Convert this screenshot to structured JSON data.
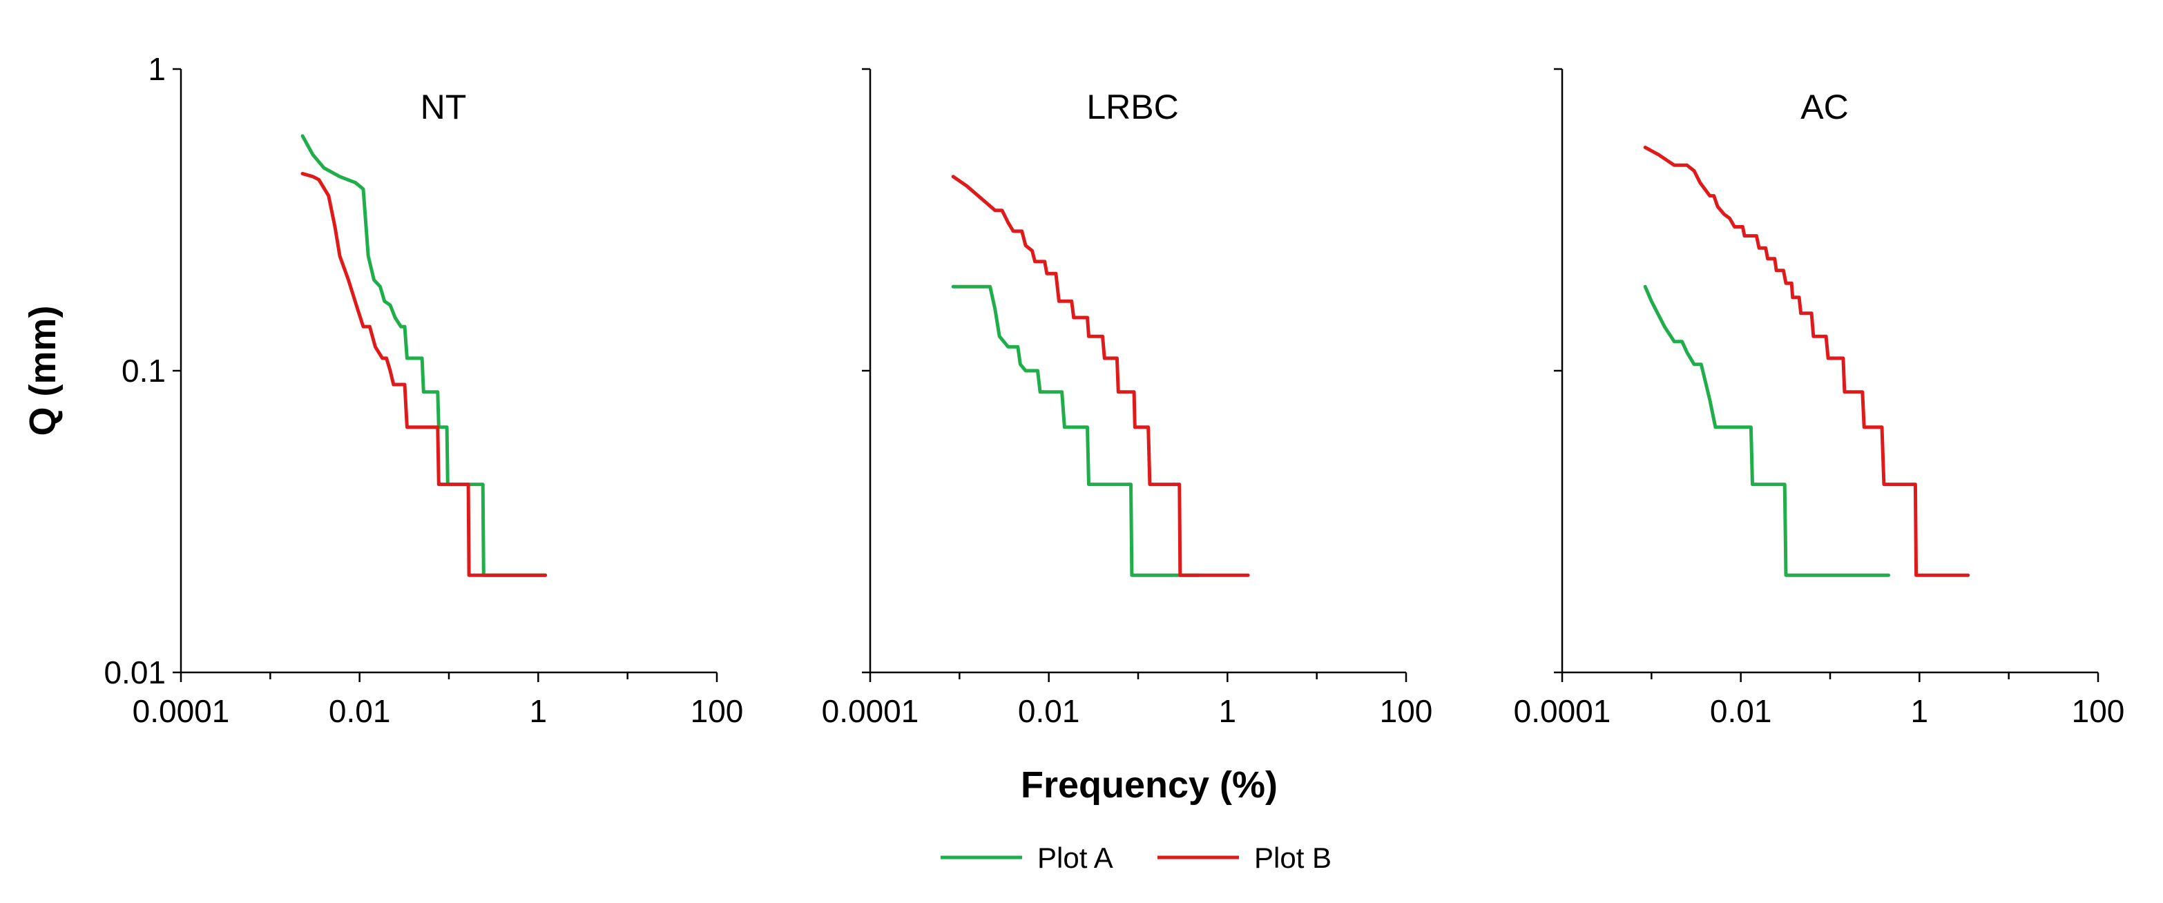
{
  "chart_data": {
    "type": "line",
    "xlabel": "Frequency (%)",
    "ylabel": "Q (mm)",
    "xscale": "log",
    "yscale": "log",
    "xlim": [
      0.0001,
      100
    ],
    "ylim": [
      0.01,
      1
    ],
    "x_ticks": [
      "0.0001",
      "0.01",
      "1",
      "100"
    ],
    "x_tick_values": [
      0.0001,
      0.01,
      1,
      100
    ],
    "x_minor_tick_values": [
      0.001,
      0.1,
      10
    ],
    "y_ticks": [
      "0.01",
      "0.1",
      "1"
    ],
    "y_tick_values": [
      0.01,
      0.1,
      1
    ],
    "legend": {
      "position": "bottom-center",
      "entries": [
        {
          "label": "Plot A",
          "color": "#1fae4a"
        },
        {
          "label": "Plot B",
          "color": "#e01a1a"
        }
      ]
    },
    "panels": [
      {
        "title": "NT",
        "show_ylabels": true,
        "series": [
          {
            "name": "Plot A",
            "color": "#1fae4a",
            "points": [
              [
                0.0023,
                0.6
              ],
              [
                0.003,
                0.52
              ],
              [
                0.004,
                0.47
              ],
              [
                0.006,
                0.44
              ],
              [
                0.009,
                0.42
              ],
              [
                0.011,
                0.4
              ],
              [
                0.0125,
                0.24
              ],
              [
                0.0145,
                0.2
              ],
              [
                0.017,
                0.19
              ],
              [
                0.019,
                0.17
              ],
              [
                0.022,
                0.165
              ],
              [
                0.025,
                0.15
              ],
              [
                0.029,
                0.14
              ],
              [
                0.032,
                0.14
              ],
              [
                0.034,
                0.11
              ],
              [
                0.05,
                0.11
              ],
              [
                0.052,
                0.085
              ],
              [
                0.075,
                0.085
              ],
              [
                0.077,
                0.065
              ],
              [
                0.095,
                0.065
              ],
              [
                0.097,
                0.042
              ],
              [
                0.24,
                0.042
              ],
              [
                0.245,
                0.021
              ],
              [
                1.2,
                0.021
              ]
            ]
          },
          {
            "name": "Plot B",
            "color": "#e01a1a",
            "points": [
              [
                0.0023,
                0.45
              ],
              [
                0.003,
                0.44
              ],
              [
                0.0035,
                0.43
              ],
              [
                0.0045,
                0.38
              ],
              [
                0.0053,
                0.3
              ],
              [
                0.006,
                0.24
              ],
              [
                0.0075,
                0.2
              ],
              [
                0.0095,
                0.16
              ],
              [
                0.011,
                0.14
              ],
              [
                0.013,
                0.14
              ],
              [
                0.015,
                0.12
              ],
              [
                0.018,
                0.11
              ],
              [
                0.02,
                0.11
              ],
              [
                0.022,
                0.1
              ],
              [
                0.024,
                0.09
              ],
              [
                0.032,
                0.09
              ],
              [
                0.034,
                0.065
              ],
              [
                0.075,
                0.065
              ],
              [
                0.077,
                0.042
              ],
              [
                0.165,
                0.042
              ],
              [
                0.168,
                0.021
              ],
              [
                1.2,
                0.021
              ]
            ]
          }
        ]
      },
      {
        "title": "LRBC",
        "show_ylabels": false,
        "series": [
          {
            "name": "Plot A",
            "color": "#1fae4a",
            "points": [
              [
                0.00085,
                0.19
              ],
              [
                0.0017,
                0.19
              ],
              [
                0.0022,
                0.19
              ],
              [
                0.0025,
                0.16
              ],
              [
                0.0028,
                0.13
              ],
              [
                0.0035,
                0.12
              ],
              [
                0.0045,
                0.12
              ],
              [
                0.0048,
                0.105
              ],
              [
                0.0055,
                0.1
              ],
              [
                0.0075,
                0.1
              ],
              [
                0.008,
                0.085
              ],
              [
                0.014,
                0.085
              ],
              [
                0.015,
                0.065
              ],
              [
                0.027,
                0.065
              ],
              [
                0.028,
                0.042
              ],
              [
                0.083,
                0.042
              ],
              [
                0.085,
                0.021
              ],
              [
                0.48,
                0.021
              ]
            ]
          },
          {
            "name": "Plot B",
            "color": "#e01a1a",
            "points": [
              [
                0.00085,
                0.44
              ],
              [
                0.0012,
                0.41
              ],
              [
                0.0018,
                0.37
              ],
              [
                0.0025,
                0.34
              ],
              [
                0.003,
                0.34
              ],
              [
                0.0035,
                0.31
              ],
              [
                0.004,
                0.29
              ],
              [
                0.005,
                0.29
              ],
              [
                0.0055,
                0.26
              ],
              [
                0.0065,
                0.25
              ],
              [
                0.007,
                0.23
              ],
              [
                0.009,
                0.23
              ],
              [
                0.0095,
                0.21
              ],
              [
                0.012,
                0.21
              ],
              [
                0.013,
                0.17
              ],
              [
                0.018,
                0.17
              ],
              [
                0.019,
                0.15
              ],
              [
                0.027,
                0.15
              ],
              [
                0.028,
                0.13
              ],
              [
                0.04,
                0.13
              ],
              [
                0.042,
                0.11
              ],
              [
                0.058,
                0.11
              ],
              [
                0.06,
                0.085
              ],
              [
                0.09,
                0.085
              ],
              [
                0.092,
                0.065
              ],
              [
                0.13,
                0.065
              ],
              [
                0.135,
                0.042
              ],
              [
                0.29,
                0.042
              ],
              [
                0.295,
                0.021
              ],
              [
                1.7,
                0.021
              ]
            ]
          }
        ]
      },
      {
        "title": "AC",
        "show_ylabels": false,
        "series": [
          {
            "name": "Plot A",
            "color": "#1fae4a",
            "points": [
              [
                0.00085,
                0.19
              ],
              [
                0.001,
                0.17
              ],
              [
                0.0014,
                0.14
              ],
              [
                0.0018,
                0.125
              ],
              [
                0.0022,
                0.125
              ],
              [
                0.0025,
                0.115
              ],
              [
                0.003,
                0.105
              ],
              [
                0.0036,
                0.105
              ],
              [
                0.0045,
                0.08
              ],
              [
                0.0052,
                0.065
              ],
              [
                0.013,
                0.065
              ],
              [
                0.0135,
                0.042
              ],
              [
                0.031,
                0.042
              ],
              [
                0.032,
                0.021
              ],
              [
                0.45,
                0.021
              ]
            ]
          },
          {
            "name": "Plot B",
            "color": "#e01a1a",
            "points": [
              [
                0.00085,
                0.55
              ],
              [
                0.0012,
                0.52
              ],
              [
                0.0018,
                0.48
              ],
              [
                0.0025,
                0.48
              ],
              [
                0.003,
                0.46
              ],
              [
                0.0035,
                0.42
              ],
              [
                0.0045,
                0.38
              ],
              [
                0.005,
                0.38
              ],
              [
                0.0055,
                0.35
              ],
              [
                0.0065,
                0.33
              ],
              [
                0.0075,
                0.32
              ],
              [
                0.0085,
                0.3
              ],
              [
                0.0105,
                0.3
              ],
              [
                0.011,
                0.28
              ],
              [
                0.015,
                0.28
              ],
              [
                0.016,
                0.255
              ],
              [
                0.019,
                0.255
              ],
              [
                0.02,
                0.235
              ],
              [
                0.024,
                0.235
              ],
              [
                0.025,
                0.215
              ],
              [
                0.03,
                0.215
              ],
              [
                0.032,
                0.195
              ],
              [
                0.037,
                0.195
              ],
              [
                0.038,
                0.175
              ],
              [
                0.045,
                0.175
              ],
              [
                0.047,
                0.155
              ],
              [
                0.062,
                0.155
              ],
              [
                0.065,
                0.13
              ],
              [
                0.09,
                0.13
              ],
              [
                0.095,
                0.11
              ],
              [
                0.14,
                0.11
              ],
              [
                0.145,
                0.085
              ],
              [
                0.23,
                0.085
              ],
              [
                0.24,
                0.065
              ],
              [
                0.38,
                0.065
              ],
              [
                0.4,
                0.042
              ],
              [
                0.9,
                0.042
              ],
              [
                0.92,
                0.021
              ],
              [
                3.5,
                0.021
              ]
            ]
          }
        ]
      }
    ]
  }
}
